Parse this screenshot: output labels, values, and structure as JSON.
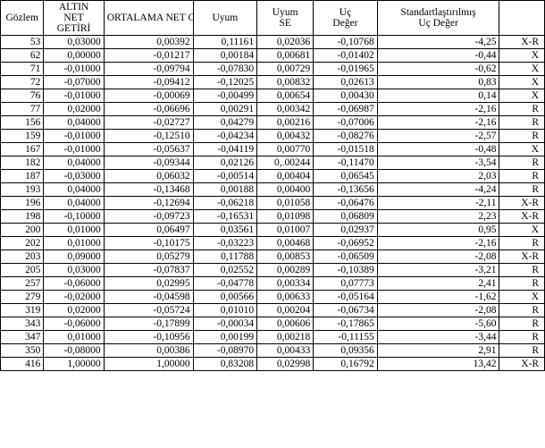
{
  "columns": {
    "gozlem": "Gözlem",
    "altin": "ALTIN NET GETİRİ",
    "ort": "ORTALAMA NET GETİRİ",
    "uyum": "Uyum",
    "uyumse": "Uyum SE",
    "uc": "Uç Değer",
    "std": "Standartlaştırılmış Uç Değer",
    "mark": ""
  },
  "rows": [
    {
      "gozlem": "53",
      "altin": "0,03000",
      "ort": "0,00392",
      "uyum": "0,11161",
      "uyumse": "0,02036",
      "uc": "-0,10768",
      "std": "-4,25",
      "mark": "X-R"
    },
    {
      "gozlem": "62",
      "altin": "0,00000",
      "ort": "-0,01217",
      "uyum": "0,00184",
      "uyumse": "0,00681",
      "uc": "-0,01402",
      "std": "-0,44",
      "mark": "X"
    },
    {
      "gozlem": "71",
      "altin": "-0,01000",
      "ort": "-0,09794",
      "uyum": "-0,07830",
      "uyumse": "0,00729",
      "uc": "-0,01965",
      "std": "-0,62",
      "mark": "X"
    },
    {
      "gozlem": "72",
      "altin": "-0,07000",
      "ort": "-0,09412",
      "uyum": "-0,12025",
      "uyumse": "0,00832",
      "uc": "0,02613",
      "std": "0,83",
      "mark": "X"
    },
    {
      "gozlem": "76",
      "altin": "-0,01000",
      "ort": "-0,00069",
      "uyum": "-0,00499",
      "uyumse": "0,00654",
      "uc": "0,00430",
      "std": "0,14",
      "mark": "X"
    },
    {
      "gozlem": "77",
      "altin": "0,02000",
      "ort": "-0,06696",
      "uyum": "0,00291",
      "uyumse": "0,00342",
      "uc": "-0,06987",
      "std": "-2,16",
      "mark": "R"
    },
    {
      "gozlem": "156",
      "altin": "0,04000",
      "ort": "-0,02727",
      "uyum": "0,04279",
      "uyumse": "0,00216",
      "uc": "-0,07006",
      "std": "-2,16",
      "mark": "R"
    },
    {
      "gozlem": "159",
      "altin": "-0,01000",
      "ort": "-0,12510",
      "uyum": "-0,04234",
      "uyumse": "0,00432",
      "uc": "-0,08276",
      "std": "-2,57",
      "mark": "R"
    },
    {
      "gozlem": "167",
      "altin": "-0,01000",
      "ort": "-0,05637",
      "uyum": "-0,04119",
      "uyumse": "0,00770",
      "uc": "-0,01518",
      "std": "-0,48",
      "mark": "X"
    },
    {
      "gozlem": "182",
      "altin": "0,04000",
      "ort": "-0,09344",
      "uyum": "0,02126",
      "uyumse": "0,.00244",
      "uc": "-0,11470",
      "std": "-3,54",
      "mark": "R"
    },
    {
      "gozlem": "187",
      "altin": "-0,03000",
      "ort": "0,06032",
      "uyum": "-0,00514",
      "uyumse": "0,00404",
      "uc": "0,06545",
      "std": "2,03",
      "mark": "R"
    },
    {
      "gozlem": "193",
      "altin": "0,04000",
      "ort": "-0,13468",
      "uyum": "0,00188",
      "uyumse": "0,00400",
      "uc": "-0,13656",
      "std": "-4,24",
      "mark": "R"
    },
    {
      "gozlem": "196",
      "altin": "0,04000",
      "ort": "-0,12694",
      "uyum": "-0,06218",
      "uyumse": "0,01058",
      "uc": "-0,06476",
      "std": "-2,11",
      "mark": "X-R"
    },
    {
      "gozlem": "198",
      "altin": "-0,10000",
      "ort": "-0,09723",
      "uyum": "-0,16531",
      "uyumse": "0,01098",
      "uc": "0,06809",
      "std": "2,23",
      "mark": "X-R"
    },
    {
      "gozlem": "200",
      "altin": "0,01000",
      "ort": "0,06497",
      "uyum": "0,03561",
      "uyumse": "0,01007",
      "uc": "0,02937",
      "std": "0,95",
      "mark": "X"
    },
    {
      "gozlem": "202",
      "altin": "0,01000",
      "ort": "-0,10175",
      "uyum": "-0,03223",
      "uyumse": "0,00468",
      "uc": "-0,06952",
      "std": "-2,16",
      "mark": "R"
    },
    {
      "gozlem": "203",
      "altin": "0,09000",
      "ort": "0,05279",
      "uyum": "0,11788",
      "uyumse": "0,00853",
      "uc": "-0,06509",
      "std": "-2,08",
      "mark": "X-R"
    },
    {
      "gozlem": "205",
      "altin": "0,03000",
      "ort": "-0,07837",
      "uyum": "0,02552",
      "uyumse": "0,00289",
      "uc": "-0,10389",
      "std": "-3,21",
      "mark": "R"
    },
    {
      "gozlem": "257",
      "altin": "-0,06000",
      "ort": "0,02995",
      "uyum": "-0,04778",
      "uyumse": "0,00334",
      "uc": "0,07773",
      "std": "2,41",
      "mark": "R"
    },
    {
      "gozlem": "279",
      "altin": "-0,02000",
      "ort": "-0,04598",
      "uyum": "0,00566",
      "uyumse": "0,00633",
      "uc": "-0,05164",
      "std": "-1,62",
      "mark": "X"
    },
    {
      "gozlem": "319",
      "altin": "0,02000",
      "ort": "-0,05724",
      "uyum": "0,01010",
      "uyumse": "0,00204",
      "uc": "-0,06734",
      "std": "-2,08",
      "mark": "R"
    },
    {
      "gozlem": "343",
      "altin": "-0,06000",
      "ort": "-0,17899",
      "uyum": "-0,00034",
      "uyumse": "0,00606",
      "uc": "-0,17865",
      "std": "-5,60",
      "mark": "R"
    },
    {
      "gozlem": "347",
      "altin": "0,01000",
      "ort": "-0,10956",
      "uyum": "0,00199",
      "uyumse": "0,00218",
      "uc": "-0,11155",
      "std": "-3,44",
      "mark": "R"
    },
    {
      "gozlem": "350",
      "altin": "-0,08000",
      "ort": "0,00386",
      "uyum": "-0,08970",
      "uyumse": "0,00433",
      "uc": "0,09356",
      "std": "2,91",
      "mark": "R"
    },
    {
      "gozlem": "416",
      "altin": "1,00000",
      "ort": "1,00000",
      "uyum": "0,83208",
      "uyumse": "0,02998",
      "uc": "0,16792",
      "std": "13,42",
      "mark": "X-R"
    }
  ]
}
